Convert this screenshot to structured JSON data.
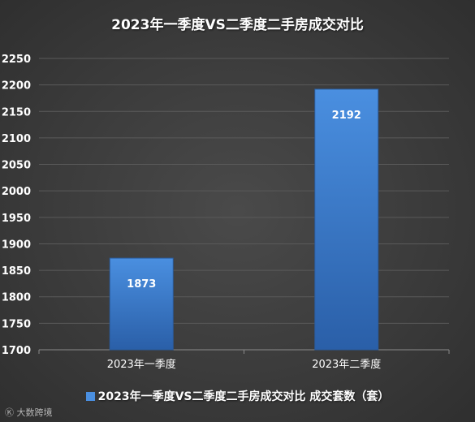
{
  "chart_data": {
    "type": "bar",
    "title": "2023年一季度VS二季度二手房成交对比",
    "categories": [
      "2023年一季度",
      "2023年二季度"
    ],
    "series": [
      {
        "name": "2023年一季度VS二季度二手房成交对比 成交套数（套）",
        "values": [
          1873,
          2192
        ],
        "data_labels": [
          "1873",
          "2192"
        ]
      }
    ],
    "ylim": [
      1700,
      2250
    ],
    "yticks": [
      "1700",
      "1750",
      "1800",
      "1850",
      "1900",
      "1950",
      "2000",
      "2050",
      "2100",
      "2150",
      "2200",
      "2250"
    ],
    "grid": true,
    "legend_position": "bottom"
  },
  "colors": {
    "bar_top": "#4a8fe0",
    "bar_bottom": "#2a5fa8",
    "grid": "#5a5a5a",
    "text": "#ffffff"
  },
  "watermark": "大数跨境"
}
